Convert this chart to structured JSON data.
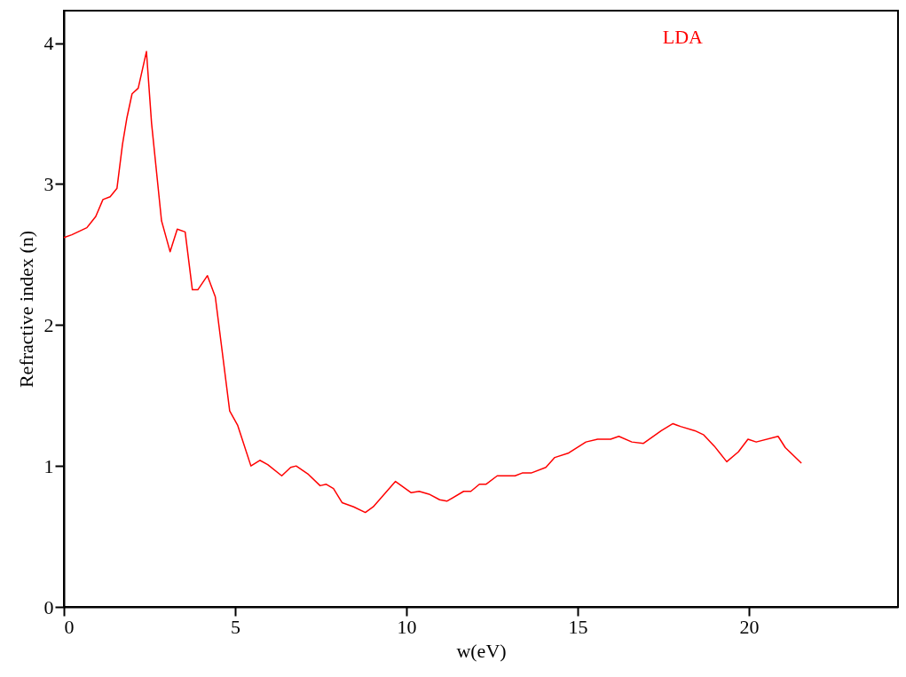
{
  "chart_data": {
    "type": "line",
    "xlabel": "w(eV)",
    "ylabel": "Refractive index (n)",
    "xlim": [
      0,
      24.35
    ],
    "ylim": [
      0,
      4.23
    ],
    "xticks": [
      0,
      5,
      10,
      15,
      20
    ],
    "yticks": [
      0,
      1,
      2,
      3,
      4
    ],
    "grid": false,
    "legend": "top right",
    "line_style": "solid",
    "marker": "none",
    "series": [
      {
        "name": "LDA",
        "color": "#ff0000",
        "x": [
          0,
          0.23,
          0.67,
          0.93,
          1.14,
          1.35,
          1.55,
          1.71,
          1.84,
          1.99,
          2.17,
          2.41,
          2.56,
          2.85,
          3.1,
          3.31,
          3.54,
          3.75,
          3.91,
          4.19,
          4.42,
          4.84,
          5.07,
          5.46,
          5.72,
          5.95,
          6.36,
          6.62,
          6.78,
          7.14,
          7.48,
          7.66,
          7.87,
          8.12,
          8.46,
          8.8,
          9.03,
          9.68,
          10.14,
          10.37,
          10.66,
          10.97,
          11.18,
          11.67,
          11.88,
          12.13,
          12.32,
          12.65,
          13.17,
          13.38,
          13.64,
          14.07,
          14.33,
          14.72,
          15.24,
          15.58,
          15.96,
          16.2,
          16.58,
          16.92,
          17.44,
          17.78,
          18.0,
          18.42,
          18.68,
          18.99,
          19.35,
          19.69,
          19.97,
          20.21,
          20.85,
          21.06,
          21.53
        ],
        "values": [
          2.62,
          2.64,
          2.69,
          2.77,
          2.89,
          2.91,
          2.97,
          3.28,
          3.47,
          3.64,
          3.68,
          3.94,
          3.43,
          2.74,
          2.52,
          2.68,
          2.66,
          2.25,
          2.25,
          2.35,
          2.2,
          1.39,
          1.29,
          1.0,
          1.04,
          1.01,
          0.93,
          0.99,
          1.0,
          0.94,
          0.86,
          0.87,
          0.84,
          0.74,
          0.71,
          0.67,
          0.71,
          0.89,
          0.81,
          0.82,
          0.8,
          0.76,
          0.75,
          0.82,
          0.82,
          0.87,
          0.87,
          0.93,
          0.93,
          0.95,
          0.95,
          0.99,
          1.06,
          1.09,
          1.17,
          1.19,
          1.19,
          1.21,
          1.17,
          1.16,
          1.25,
          1.3,
          1.28,
          1.25,
          1.22,
          1.14,
          1.03,
          1.1,
          1.19,
          1.17,
          1.21,
          1.13,
          1.02
        ]
      }
    ]
  }
}
